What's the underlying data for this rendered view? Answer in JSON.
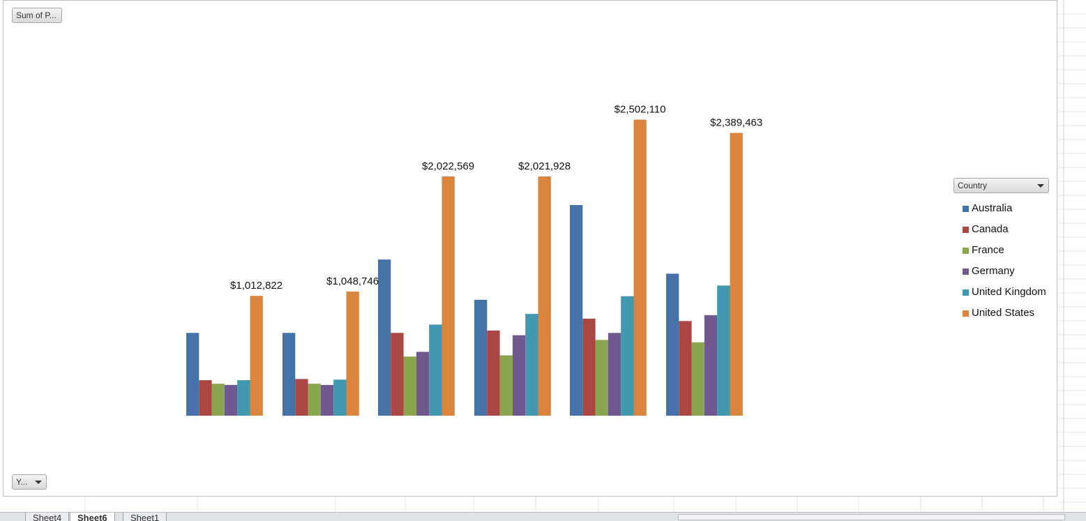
{
  "pivot": {
    "values_button": "Sum of P...",
    "axis_button": "Y...",
    "legend_title": "Country"
  },
  "sheet_tabs": [
    {
      "label": "Sheet4",
      "active": false
    },
    {
      "label": "Sheet6",
      "active": true
    },
    {
      "label": "Sheet1",
      "active": false
    }
  ],
  "chart_data": {
    "type": "bar",
    "categories": [
      "",
      "",
      "",
      "",
      "",
      ""
    ],
    "series": [
      {
        "name": "Australia",
        "color": "#4572a7",
        "values": [
          700000,
          700000,
          1320000,
          980000,
          1780000,
          1200000
        ]
      },
      {
        "name": "Canada",
        "color": "#aa4643",
        "values": [
          300000,
          310000,
          700000,
          720000,
          820000,
          800000
        ]
      },
      {
        "name": "France",
        "color": "#89a54e",
        "values": [
          270000,
          270000,
          500000,
          510000,
          640000,
          620000
        ]
      },
      {
        "name": "Germany",
        "color": "#71588f",
        "values": [
          260000,
          260000,
          540000,
          680000,
          700000,
          850000
        ]
      },
      {
        "name": "United Kingdom",
        "color": "#4198af",
        "values": [
          300000,
          305000,
          770000,
          860000,
          1010000,
          1100000
        ]
      },
      {
        "name": "United States",
        "color": "#db843d",
        "values": [
          1012822,
          1048746,
          2022569,
          2021928,
          2502110,
          2389463
        ]
      }
    ],
    "data_labels": [
      "$1,012,822",
      "$1,048,746",
      "$2,022,569",
      "$2,021,928",
      "$2,502,110",
      "$2,389,463"
    ],
    "title": "",
    "xlabel": "",
    "ylabel": "",
    "ylim": [
      0,
      2800000
    ],
    "grid": false,
    "legend_position": "right"
  }
}
